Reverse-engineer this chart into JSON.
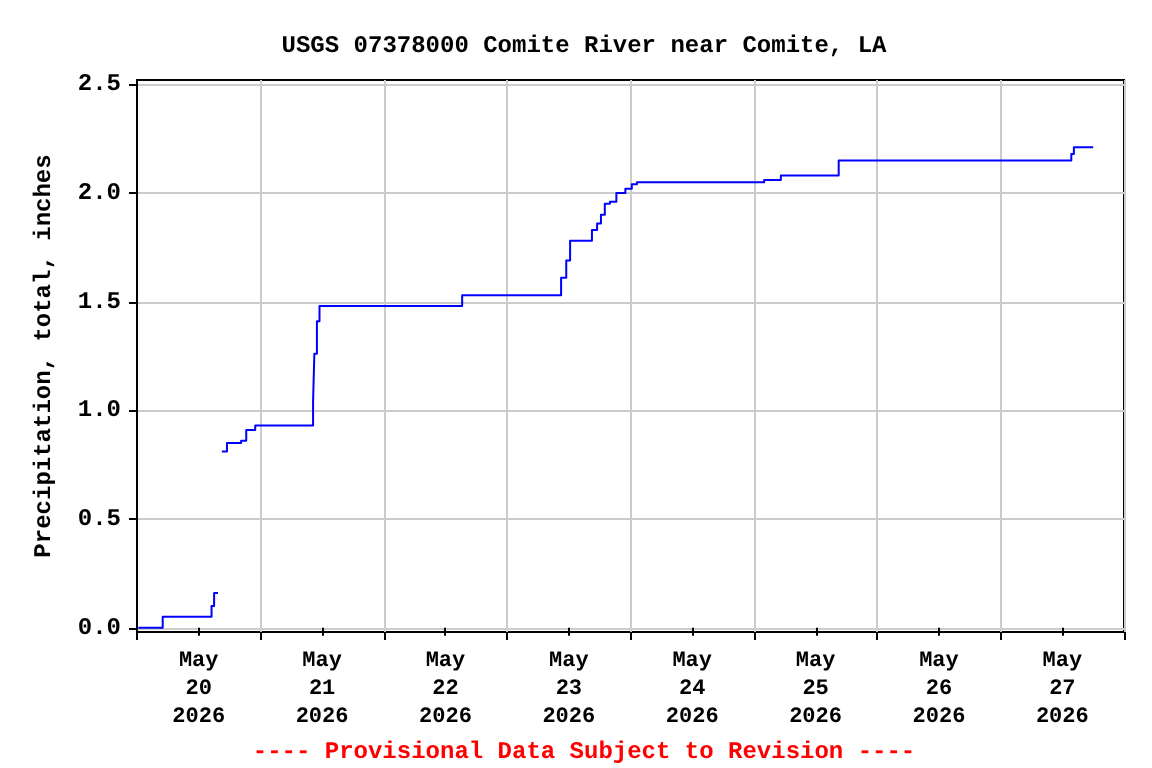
{
  "chart_data": {
    "type": "step",
    "title": "USGS 07378000 Comite River near Comite, LA",
    "ylabel": "Precipitation, total, inches",
    "annotations": [
      "---- Provisional Data Subject to Revision ----"
    ],
    "x": [
      "2026-05-20T00:15",
      "2026-05-20T05:00",
      "2026-05-20T14:30",
      "2026-05-20T15:00",
      "2026-05-20T15:45",
      "2026-05-20T16:30",
      "2026-05-20T17:30",
      "2026-05-20T20:15",
      "2026-05-20T21:15",
      "2026-05-20T23:00",
      "2026-05-21T10:15",
      "2026-05-21T10:30",
      "2026-05-21T11:00",
      "2026-05-21T11:30",
      "2026-05-22T15:15",
      "2026-05-23T10:30",
      "2026-05-23T11:30",
      "2026-05-23T12:15",
      "2026-05-23T16:30",
      "2026-05-23T17:30",
      "2026-05-23T18:15",
      "2026-05-23T19:00",
      "2026-05-23T20:00",
      "2026-05-23T21:15",
      "2026-05-23T23:00",
      "2026-05-24T00:15",
      "2026-05-24T01:15",
      "2026-05-25T02:00",
      "2026-05-25T05:15",
      "2026-05-25T16:30",
      "2026-05-27T13:45",
      "2026-05-27T14:15",
      "2026-05-27T18:00"
    ],
    "series": [
      {
        "color": "#0000ff",
        "values": [
          0.0,
          0.05,
          0.1,
          0.16,
          null,
          0.81,
          0.85,
          0.86,
          0.91,
          0.93,
          1.04,
          1.26,
          1.41,
          1.48,
          1.53,
          1.61,
          1.69,
          1.78,
          1.83,
          1.86,
          1.9,
          1.95,
          1.96,
          2.0,
          2.02,
          2.04,
          2.05,
          2.06,
          2.08,
          2.15,
          2.18,
          2.21,
          2.21
        ]
      }
    ],
    "xlim": [
      "2026-05-20T00:00",
      "2026-05-28T00:00"
    ],
    "xticks": [
      {
        "value": "2026-05-20T00:00",
        "label": null
      },
      {
        "value": "2026-05-20T12:00",
        "label": "May\n20\n2026"
      },
      {
        "value": "2026-05-21T00:00",
        "label": null
      },
      {
        "value": "2026-05-21T12:00",
        "label": "May\n21\n2026"
      },
      {
        "value": "2026-05-22T00:00",
        "label": null
      },
      {
        "value": "2026-05-22T12:00",
        "label": "May\n22\n2026"
      },
      {
        "value": "2026-05-23T00:00",
        "label": null
      },
      {
        "value": "2026-05-23T12:00",
        "label": "May\n23\n2026"
      },
      {
        "value": "2026-05-24T00:00",
        "label": null
      },
      {
        "value": "2026-05-24T12:00",
        "label": "May\n24\n2026"
      },
      {
        "value": "2026-05-25T00:00",
        "label": null
      },
      {
        "value": "2026-05-25T12:00",
        "label": "May\n25\n2026"
      },
      {
        "value": "2026-05-26T00:00",
        "label": null
      },
      {
        "value": "2026-05-26T12:00",
        "label": "May\n26\n2026"
      },
      {
        "value": "2026-05-27T00:00",
        "label": null
      },
      {
        "value": "2026-05-27T12:00",
        "label": "May\n27\n2026"
      },
      {
        "value": "2026-05-28T00:00",
        "label": null
      }
    ],
    "ylim": [
      -0.02,
      2.52
    ],
    "yticks": [
      {
        "value": 0,
        "label": "0.0"
      },
      {
        "value": 0.5,
        "label": "0.5"
      },
      {
        "value": 1,
        "label": "1.0"
      },
      {
        "value": 1.5,
        "label": "1.5"
      },
      {
        "value": 2,
        "label": "2.0"
      },
      {
        "value": 2.5,
        "label": "2.5"
      }
    ],
    "grid": true,
    "marker": "none",
    "line_style": "solid"
  }
}
